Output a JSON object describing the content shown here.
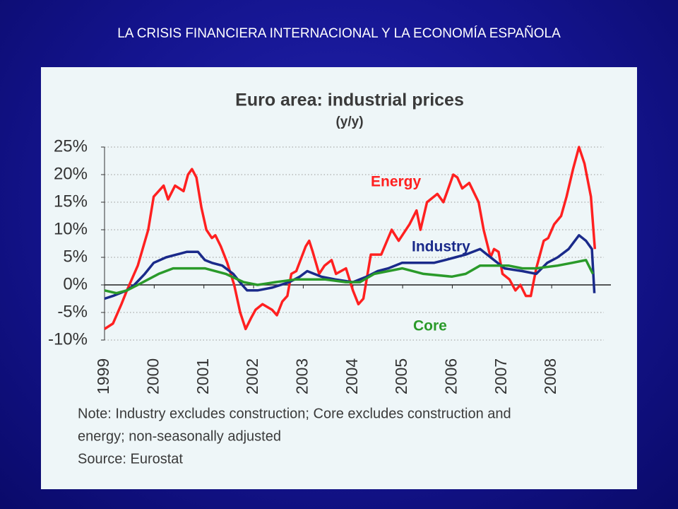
{
  "slide_title": "LA CRISIS FINANCIERA INTERNACIONAL  Y LA ECONOMÍA ESPAÑOLA",
  "chart_data": {
    "type": "line",
    "title": "Euro area: industrial prices",
    "subtitle": "(y/y)",
    "xlim": [
      1999,
      2009.05
    ],
    "xticks": [
      1999,
      2000,
      2001,
      2002,
      2003,
      2004,
      2005,
      2006,
      2007,
      2008
    ],
    "ylim": [
      -10,
      25
    ],
    "yticks": [
      {
        "value": -10,
        "label": "-10%"
      },
      {
        "value": -5,
        "label": "-5%"
      },
      {
        "value": 0,
        "label": "0%"
      },
      {
        "value": 5,
        "label": "5%"
      },
      {
        "value": 10,
        "label": "10%"
      },
      {
        "value": 15,
        "label": "15%"
      },
      {
        "value": 20,
        "label": "20%"
      },
      {
        "value": 25,
        "label": "25%"
      }
    ],
    "grid": true,
    "series": [
      {
        "name": "Energy",
        "color": "#ff2020",
        "x": [
          1999.0,
          1999.17,
          1999.34,
          1999.45,
          1999.67,
          1999.88,
          1999.99,
          2000.19,
          2000.28,
          2000.42,
          2000.59,
          2000.68,
          2000.76,
          2000.85,
          2000.95,
          2001.05,
          2001.16,
          2001.23,
          2001.34,
          2001.47,
          2001.61,
          2001.73,
          2001.84,
          2001.95,
          2002.04,
          2002.18,
          2002.37,
          2002.47,
          2002.58,
          2002.68,
          2002.76,
          2002.86,
          2003.05,
          2003.12,
          2003.19,
          2003.32,
          2003.43,
          2003.57,
          2003.66,
          2003.86,
          2004.0,
          2004.11,
          2004.21,
          2004.36,
          2004.57,
          2004.78,
          2004.92,
          2005.14,
          2005.28,
          2005.36,
          2005.49,
          2005.7,
          2005.82,
          2006.02,
          2006.1,
          2006.2,
          2006.34,
          2006.53,
          2006.63,
          2006.77,
          2006.84,
          2006.93,
          2007.01,
          2007.15,
          2007.27,
          2007.37,
          2007.48,
          2007.58,
          2007.69,
          2007.84,
          2007.93,
          2008.05,
          2008.19,
          2008.3,
          2008.43,
          2008.55,
          2008.66,
          2008.79,
          2008.87
        ],
        "values": [
          -8,
          -7,
          -3.5,
          -1,
          3.5,
          10,
          16,
          18,
          15.5,
          18,
          17,
          20,
          21,
          19.5,
          14,
          10,
          8.5,
          9,
          7,
          4,
          0,
          -5,
          -8,
          -6,
          -4.5,
          -3.5,
          -4.5,
          -5.5,
          -3,
          -2,
          2,
          2.5,
          7,
          8,
          6,
          2,
          3.5,
          4.5,
          2,
          3,
          -1,
          -3.5,
          -2.5,
          5.5,
          5.5,
          10,
          8,
          11,
          13.5,
          10,
          15,
          16.5,
          15,
          20,
          19.5,
          17.5,
          18.5,
          15,
          10,
          5,
          6.5,
          6,
          2,
          1,
          -1,
          0,
          -2,
          -2,
          3,
          8,
          8.5,
          11,
          12.5,
          16,
          21,
          25,
          22,
          16,
          6.5
        ]
      },
      {
        "name": "Industry",
        "color": "#1a2a8a",
        "x": [
          1999.0,
          1999.17,
          1999.45,
          1999.6,
          1999.81,
          1999.99,
          2000.24,
          2000.45,
          2000.66,
          2000.88,
          2001.02,
          2001.16,
          2001.37,
          2001.59,
          2001.77,
          2001.87,
          2002.08,
          2002.37,
          2002.72,
          2002.93,
          2003.08,
          2003.36,
          2003.64,
          2004.0,
          2004.28,
          2004.5,
          2004.71,
          2004.99,
          2005.42,
          2005.63,
          2005.85,
          2006.06,
          2006.27,
          2006.56,
          2006.77,
          2006.91,
          2007.05,
          2007.41,
          2007.69,
          2007.91,
          2008.12,
          2008.34,
          2008.55,
          2008.69,
          2008.81,
          2008.86
        ],
        "values": [
          -2.5,
          -2,
          -1,
          0,
          2,
          4,
          5,
          5.5,
          6,
          6,
          4.5,
          4,
          3.5,
          2,
          0,
          -1,
          -1,
          -0.5,
          0.5,
          1.5,
          2.5,
          1.5,
          1,
          0.5,
          1.5,
          2.5,
          3,
          4,
          4,
          4,
          4.5,
          5,
          5.5,
          6.5,
          5,
          4,
          3,
          2.5,
          2,
          4,
          5,
          6.5,
          9,
          8,
          6.5,
          -1.5
        ]
      },
      {
        "name": "Core",
        "color": "#2a9a2a",
        "x": [
          1999.0,
          1999.24,
          1999.45,
          1999.67,
          1999.88,
          2000.09,
          2000.38,
          2001.02,
          2001.44,
          2001.8,
          2002.08,
          2002.44,
          2002.86,
          2003.43,
          2003.86,
          2004.14,
          2004.43,
          2004.71,
          2004.99,
          2005.42,
          2005.99,
          2006.27,
          2006.56,
          2006.84,
          2007.13,
          2007.41,
          2007.69,
          2008.12,
          2008.41,
          2008.69,
          2008.83
        ],
        "values": [
          -1,
          -1.5,
          -1,
          0,
          1,
          2,
          3,
          3,
          2,
          0.5,
          0,
          0.5,
          1,
          1,
          0.5,
          0.5,
          2,
          2.5,
          3,
          2,
          1.5,
          2,
          3.5,
          3.5,
          3.5,
          3,
          3,
          3.5,
          4,
          4.5,
          2
        ]
      }
    ],
    "notes": [
      "Note: Industry excludes construction; Core excludes construction and",
      "energy; non-seasonally adjusted",
      "Source: Eurostat"
    ]
  }
}
